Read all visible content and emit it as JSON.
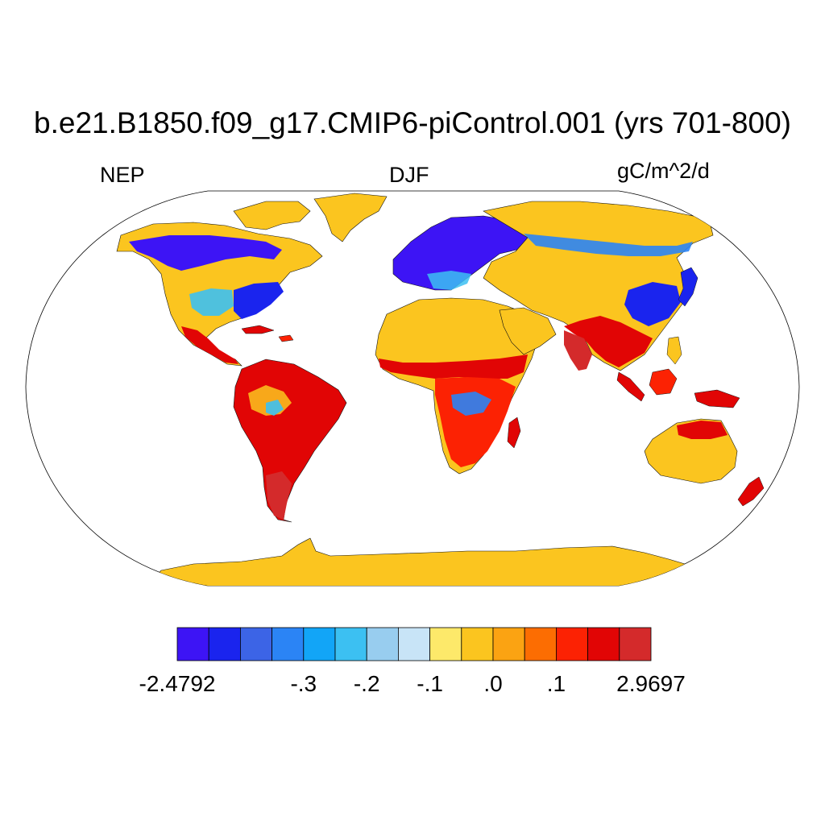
{
  "figure": {
    "title": "b.e21.B1850.f09_g17.CMIP6-piControl.001 (yrs 701-800)",
    "variable": "NEP",
    "season": "DJF",
    "units": "gC/m^2/d"
  },
  "colorbar": {
    "colors": [
      "#3d14f5",
      "#1a24ee",
      "#3c64e6",
      "#2b84f5",
      "#12a5f7",
      "#3cc0f2",
      "#98cdef",
      "#c8e4f7",
      "#fde96a",
      "#fbc51f",
      "#fba312",
      "#fc6d02",
      "#fc2203",
      "#e10505",
      "#d42a2b"
    ],
    "labels": [
      {
        "text": "-2.4792",
        "boundary": 0
      },
      {
        "text": "-.3",
        "boundary": 4
      },
      {
        "text": "-.2",
        "boundary": 6
      },
      {
        "text": "-.1",
        "boundary": 8
      },
      {
        "text": ".0",
        "boundary": 10
      },
      {
        "text": ".1",
        "boundary": 12
      },
      {
        "text": "2.9697",
        "boundary": 15
      }
    ]
  }
}
